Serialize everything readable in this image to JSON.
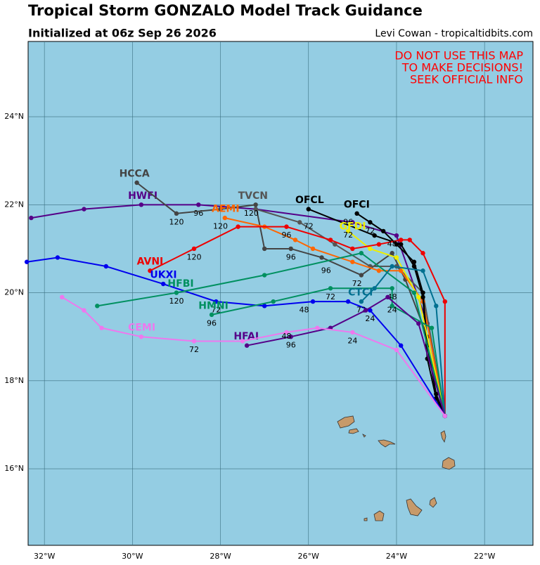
{
  "header": {
    "title": "Tropical Storm GONZALO Model Track Guidance",
    "subtitle": "Initialized at 06z Sep 26 2026",
    "credit": "Levi Cowan - tropicaltidbits.com"
  },
  "warning": [
    "DO NOT USE THIS MAP",
    "TO MAKE DECISIONS!",
    "SEEK OFFICIAL INFO"
  ],
  "map": {
    "xlim": [
      -32.37,
      -20.9
    ],
    "ylim": [
      14.26,
      25.71
    ],
    "grid": true,
    "xticks": [
      {
        "value": -32,
        "label": "32°W"
      },
      {
        "value": -30,
        "label": "30°W"
      },
      {
        "value": -28,
        "label": "28°W"
      },
      {
        "value": -26,
        "label": "26°W"
      },
      {
        "value": -24,
        "label": "24°W"
      },
      {
        "value": -22,
        "label": "22°W"
      }
    ],
    "yticks": [
      {
        "value": 16,
        "label": "16°N"
      },
      {
        "value": 18,
        "label": "18°N"
      },
      {
        "value": 20,
        "label": "20°N"
      },
      {
        "value": 22,
        "label": "22°N"
      },
      {
        "value": 24,
        "label": "24°N"
      }
    ]
  },
  "tracks": [
    {
      "name": "HWFI",
      "color": "#550088",
      "name_at": [
        -30.1,
        22.2
      ],
      "points": [
        [
          -22.9,
          17.2
        ],
        [
          -23.3,
          19.3
        ],
        [
          -24.0,
          21.3
        ],
        [
          -25.0,
          21.6
        ],
        [
          -27.2,
          21.9
        ],
        [
          -28.5,
          22.0
        ],
        [
          -29.8,
          22.0
        ],
        [
          -31.1,
          21.9
        ],
        [
          -32.3,
          21.7
        ]
      ],
      "hour_labels": [
        {
          "text": "96",
          "at": [
            -28.5,
            21.8
          ]
        },
        {
          "text": "120",
          "at": [
            -29.0,
            21.6
          ]
        }
      ]
    },
    {
      "name": "HCCA",
      "color": "#444444",
      "name_at": [
        -30.3,
        22.7
      ],
      "points": [
        [
          -22.9,
          17.2
        ],
        [
          -23.3,
          19.0
        ],
        [
          -23.8,
          20.3
        ],
        [
          -24.1,
          20.9
        ],
        [
          -24.8,
          20.4
        ],
        [
          -25.7,
          20.8
        ],
        [
          -26.4,
          21.0
        ],
        [
          -27.0,
          21.0
        ],
        [
          -27.2,
          22.0
        ],
        [
          -28.0,
          21.9
        ],
        [
          -29.0,
          21.8
        ],
        [
          -29.9,
          22.5
        ]
      ],
      "hour_labels": [
        {
          "text": "96",
          "at": [
            -26.4,
            20.8
          ]
        },
        {
          "text": "72",
          "at": [
            -24.9,
            20.2
          ]
        }
      ]
    },
    {
      "name": "TVCN",
      "color": "#555555",
      "name_at": [
        -27.6,
        22.2
      ],
      "points": [
        [
          -22.9,
          17.2
        ],
        [
          -23.4,
          20.0
        ],
        [
          -24.0,
          20.6
        ],
        [
          -24.6,
          20.6
        ],
        [
          -25.4,
          21.1
        ],
        [
          -26.2,
          21.6
        ],
        [
          -27.2,
          21.9
        ]
      ],
      "hour_labels": [
        {
          "text": "120",
          "at": [
            -27.3,
            21.8
          ]
        },
        {
          "text": "96",
          "at": [
            -25.6,
            20.5
          ]
        }
      ]
    },
    {
      "name": "AEMI",
      "color": "#ff6600",
      "name_at": [
        -28.2,
        21.9
      ],
      "points": [
        [
          -22.9,
          17.2
        ],
        [
          -23.4,
          19.8
        ],
        [
          -23.9,
          20.5
        ],
        [
          -24.4,
          20.5
        ],
        [
          -25.0,
          20.7
        ],
        [
          -25.9,
          21.0
        ],
        [
          -26.3,
          21.2
        ],
        [
          -27.0,
          21.5
        ],
        [
          -27.9,
          21.7
        ]
      ],
      "hour_labels": [
        {
          "text": "120",
          "at": [
            -28.0,
            21.5
          ]
        },
        {
          "text": "96",
          "at": [
            -26.5,
            21.3
          ]
        }
      ]
    },
    {
      "name": "OFCL",
      "color": "#000000",
      "name_at": [
        -26.3,
        22.1
      ],
      "points": [
        [
          -22.9,
          17.2
        ],
        [
          -23.1,
          17.6
        ],
        [
          -23.3,
          18.5
        ],
        [
          -23.4,
          19.9
        ],
        [
          -23.6,
          20.6
        ],
        [
          -23.9,
          21.1
        ],
        [
          -24.5,
          21.3
        ],
        [
          -26.0,
          21.9
        ]
      ],
      "hour_labels": [
        {
          "text": "72",
          "at": [
            -26.0,
            21.5
          ]
        }
      ]
    },
    {
      "name": "OFCI",
      "color": "#000000",
      "name_at": [
        -25.2,
        22.0
      ],
      "points": [
        [
          -22.9,
          17.2
        ],
        [
          -23.1,
          17.7
        ],
        [
          -23.3,
          18.8
        ],
        [
          -23.4,
          20.0
        ],
        [
          -23.6,
          20.7
        ],
        [
          -24.0,
          21.1
        ],
        [
          -24.3,
          21.4
        ],
        [
          -24.6,
          21.6
        ],
        [
          -24.9,
          21.8
        ]
      ],
      "hour_labels": [
        {
          "text": "96",
          "at": [
            -25.1,
            21.6
          ]
        },
        {
          "text": "72",
          "at": [
            -24.6,
            21.4
          ]
        }
      ]
    },
    {
      "name": "GFDI",
      "color": "#eeee00",
      "name_at": [
        -25.3,
        21.5
      ],
      "points": [
        [
          -22.9,
          17.2
        ],
        [
          -23.5,
          19.9
        ],
        [
          -24.0,
          20.8
        ],
        [
          -24.6,
          21.0
        ],
        [
          -25.1,
          21.4
        ]
      ],
      "hour_labels": [
        {
          "text": "72",
          "at": [
            -25.1,
            21.3
          ]
        }
      ]
    },
    {
      "name": "AVNI",
      "color": "#ee0000",
      "name_at": [
        -29.9,
        20.7
      ],
      "points": [
        [
          -22.9,
          17.2
        ],
        [
          -22.9,
          19.8
        ],
        [
          -23.4,
          20.9
        ],
        [
          -23.7,
          21.2
        ],
        [
          -23.9,
          21.2
        ],
        [
          -24.4,
          21.1
        ],
        [
          -25.0,
          21.0
        ],
        [
          -25.5,
          21.2
        ],
        [
          -26.5,
          21.5
        ],
        [
          -27.6,
          21.5
        ],
        [
          -28.6,
          21.0
        ],
        [
          -29.6,
          20.5
        ]
      ],
      "hour_labels": [
        {
          "text": "120",
          "at": [
            -28.6,
            20.8
          ]
        },
        {
          "text": "48",
          "at": [
            -24.1,
            21.1
          ]
        }
      ]
    },
    {
      "name": "UKXI",
      "color": "#0000ee",
      "name_at": [
        -29.6,
        20.4
      ],
      "points": [
        [
          -22.9,
          17.2
        ],
        [
          -23.9,
          18.8
        ],
        [
          -24.6,
          19.6
        ],
        [
          -25.1,
          19.8
        ],
        [
          -25.9,
          19.8
        ],
        [
          -27.0,
          19.7
        ],
        [
          -28.1,
          19.8
        ],
        [
          -29.3,
          20.2
        ],
        [
          -30.6,
          20.6
        ],
        [
          -31.7,
          20.8
        ],
        [
          -32.4,
          20.7
        ]
      ],
      "hour_labels": [
        {
          "text": "48",
          "at": [
            -26.1,
            19.6
          ]
        },
        {
          "text": "72",
          "at": [
            -28.1,
            19.6
          ]
        },
        {
          "text": "24",
          "at": [
            -24.6,
            19.4
          ]
        }
      ]
    },
    {
      "name": "HFBI",
      "color": "#009060",
      "name_at": [
        -29.2,
        20.2
      ],
      "points": [
        [
          -22.9,
          17.2
        ],
        [
          -23.6,
          20.0
        ],
        [
          -24.8,
          20.9
        ],
        [
          -27.0,
          20.4
        ],
        [
          -29.0,
          20.0
        ],
        [
          -30.8,
          19.7
        ]
      ],
      "hour_labels": [
        {
          "text": "120",
          "at": [
            -29.0,
            19.8
          ]
        }
      ]
    },
    {
      "name": "HMNI",
      "color": "#009060",
      "name_at": [
        -28.5,
        19.7
      ],
      "points": [
        [
          -22.9,
          17.2
        ],
        [
          -23.2,
          19.2
        ],
        [
          -24.1,
          19.7
        ],
        [
          -24.1,
          20.1
        ],
        [
          -25.5,
          20.1
        ],
        [
          -26.8,
          19.8
        ],
        [
          -28.2,
          19.5
        ]
      ],
      "hour_labels": [
        {
          "text": "72",
          "at": [
            -25.5,
            19.9
          ]
        },
        {
          "text": "96",
          "at": [
            -28.2,
            19.3
          ]
        },
        {
          "text": "48",
          "at": [
            -24.1,
            19.9
          ]
        }
      ]
    },
    {
      "name": "CTCI",
      "color": "#007090",
      "name_at": [
        -25.1,
        20.0
      ],
      "points": [
        [
          -22.9,
          17.2
        ],
        [
          -23.1,
          19.7
        ],
        [
          -23.4,
          20.5
        ],
        [
          -24.1,
          20.6
        ],
        [
          -24.5,
          20.1
        ],
        [
          -24.8,
          19.8
        ]
      ],
      "hour_labels": [
        {
          "text": "72",
          "at": [
            -24.8,
            19.6
          ]
        },
        {
          "text": "24",
          "at": [
            -24.1,
            19.6
          ]
        }
      ]
    },
    {
      "name": "HFAI",
      "color": "#550088",
      "name_at": [
        -27.7,
        19.0
      ],
      "points": [
        [
          -22.9,
          17.2
        ],
        [
          -23.5,
          19.3
        ],
        [
          -24.2,
          19.9
        ],
        [
          -24.7,
          19.6
        ],
        [
          -25.5,
          19.2
        ],
        [
          -26.4,
          19.0
        ],
        [
          -27.4,
          18.8
        ]
      ],
      "hour_labels": [
        {
          "text": "96",
          "at": [
            -26.4,
            18.8
          ]
        }
      ]
    },
    {
      "name": "CEMI",
      "color": "#ee77ee",
      "name_at": [
        -30.1,
        19.2
      ],
      "points": [
        [
          -22.9,
          17.2
        ],
        [
          -24.0,
          18.7
        ],
        [
          -25.0,
          19.1
        ],
        [
          -25.8,
          19.2
        ],
        [
          -26.5,
          19.1
        ],
        [
          -27.5,
          18.9
        ],
        [
          -28.6,
          18.9
        ],
        [
          -29.8,
          19.0
        ],
        [
          -30.7,
          19.2
        ],
        [
          -31.1,
          19.6
        ],
        [
          -31.6,
          19.9
        ]
      ],
      "hour_labels": [
        {
          "text": "72",
          "at": [
            -28.6,
            18.7
          ]
        },
        {
          "text": "24",
          "at": [
            -25.0,
            18.9
          ]
        },
        {
          "text": "48",
          "at": [
            -26.5,
            19.0
          ]
        }
      ]
    }
  ]
}
